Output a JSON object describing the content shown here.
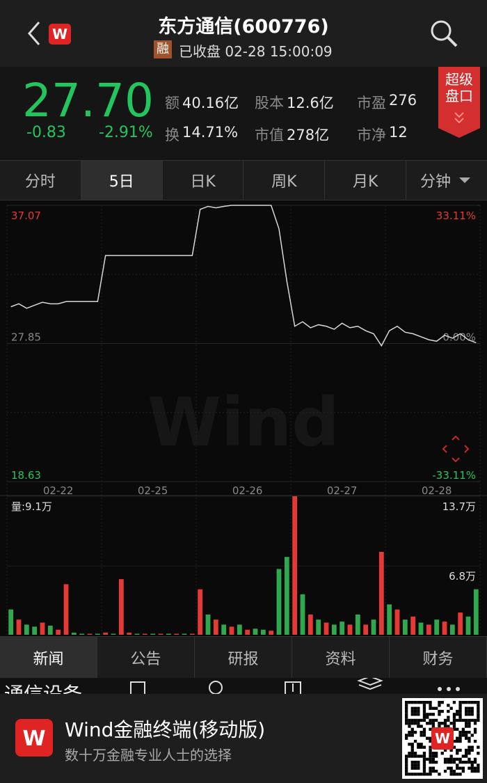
{
  "header": {
    "title": "东方通信(600776)",
    "badge": "融",
    "status": "已收盘 02-28 15:00:09"
  },
  "super_panel": [
    "超级",
    "盘口"
  ],
  "quote": {
    "price": "27.70",
    "change": "-0.83",
    "change_pct": "-2.91%",
    "stats": [
      {
        "label": "额",
        "value": "40.16亿"
      },
      {
        "label": "股本",
        "value": "12.6亿"
      },
      {
        "label": "市盈",
        "value": "276"
      },
      {
        "label": "换",
        "value": "14.71%"
      },
      {
        "label": "市值",
        "value": "278亿"
      },
      {
        "label": "市净",
        "value": "12"
      }
    ]
  },
  "chart_tabs": [
    "分时",
    "5日",
    "日K",
    "周K",
    "月K",
    "分钟"
  ],
  "chart_data": [
    {
      "type": "line",
      "color": "#d8d8d8",
      "categories": [
        null,
        null,
        null,
        null,
        null,
        null,
        "02-22",
        null,
        null,
        null,
        null,
        null,
        null,
        null,
        null,
        null,
        null,
        null,
        "02-25",
        null,
        null,
        null,
        null,
        null,
        null,
        null,
        null,
        null,
        null,
        null,
        "02-26",
        null,
        null,
        null,
        null,
        null,
        null,
        null,
        null,
        null,
        null,
        null,
        "02-27",
        null,
        null,
        null,
        null,
        null,
        null,
        null,
        null,
        null,
        null,
        null,
        "02-28",
        null,
        null,
        null,
        null,
        null
      ],
      "values": [
        30.3,
        30.5,
        30.2,
        30.4,
        30.6,
        30.5,
        30.5,
        30.65,
        30.65,
        30.65,
        30.65,
        30.65,
        33.72,
        33.72,
        33.72,
        33.72,
        33.72,
        33.72,
        33.72,
        33.72,
        33.72,
        33.72,
        33.72,
        33.72,
        36.8,
        37.0,
        36.9,
        37.0,
        37.07,
        37.07,
        37.07,
        37.07,
        37.07,
        37.07,
        35.5,
        32.0,
        29.0,
        29.3,
        28.9,
        29.1,
        29.0,
        28.8,
        29.2,
        28.9,
        29.0,
        28.7,
        28.5,
        27.7,
        28.7,
        29.0,
        28.6,
        28.5,
        28.3,
        28.1,
        28.0,
        28.4,
        28.2,
        28.5,
        28.1,
        27.9
      ],
      "ylim": [
        18.63,
        37.07
      ],
      "yticks": [
        37.07,
        27.85,
        18.63
      ],
      "y2lim": [
        -33.11,
        33.11
      ],
      "y2ticks": [
        {
          "value": 33.11,
          "label": "33.11%"
        },
        {
          "value": 0,
          "label": "0.00%"
        },
        {
          "value": -33.11,
          "label": "-33.11%"
        }
      ],
      "grid": true
    },
    {
      "type": "bar",
      "title": "量:9.1万",
      "values": [
        2.5,
        1.5,
        1,
        0.8,
        1.2,
        0.9,
        0.5,
        5,
        0.2,
        0.1,
        0.1,
        0.1,
        0.2,
        0.1,
        5.5,
        0.2,
        0.1,
        0.1,
        0.1,
        0.1,
        0.1,
        0.1,
        0.1,
        0.1,
        4.5,
        2,
        1.5,
        1,
        0.8,
        1,
        0.5,
        0.6,
        0.5,
        0.4,
        6.5,
        7.7,
        13.7,
        4,
        2,
        1.5,
        1.2,
        1,
        1.3,
        1,
        2,
        1,
        1.5,
        8.2,
        3,
        2.5,
        1.5,
        1.8,
        1.2,
        1,
        1.5,
        1.3,
        1,
        2.2,
        1.8,
        4.5
      ],
      "colors": [
        "#2fa84f",
        "#e53935",
        "#2fa84f",
        "#2fa84f",
        "#e53935",
        "#2fa84f",
        "#e53935",
        "#e53935",
        "#2fa84f",
        "#2fa84f",
        "#e53935",
        "#2fa84f",
        "#e53935",
        "#2fa84f",
        "#e53935",
        "#e53935",
        "#2fa84f",
        "#e53935",
        "#2fa84f",
        "#e53935",
        "#2fa84f",
        "#e53935",
        "#2fa84f",
        "#e53935",
        "#e53935",
        "#2fa84f",
        "#e53935",
        "#2fa84f",
        "#e53935",
        "#2fa84f",
        "#e53935",
        "#2fa84f",
        "#2fa84f",
        "#e53935",
        "#2fa84f",
        "#2fa84f",
        "#e53935",
        "#2fa84f",
        "#e53935",
        "#2fa84f",
        "#e53935",
        "#2fa84f",
        "#2fa84f",
        "#e53935",
        "#2fa84f",
        "#e53935",
        "#2fa84f",
        "#e53935",
        "#2fa84f",
        "#e53935",
        "#2fa84f",
        "#e53935",
        "#2fa84f",
        "#e53935",
        "#2fa84f",
        "#e53935",
        "#2fa84f",
        "#e53935",
        "#2fa84f",
        "#2fa84f"
      ],
      "ylim": [
        0,
        13.7
      ],
      "yticks": [
        {
          "value": 13.7,
          "label": "13.7万"
        },
        {
          "value": 6.8,
          "label": "6.8万"
        }
      ]
    }
  ],
  "watermark": "Wind",
  "info_tabs": [
    "新闻",
    "公告",
    "研报",
    "资料",
    "财务"
  ],
  "section_label": "通信设备",
  "footer": {
    "title": "Wind金融终端(移动版)",
    "subtitle": "数十万金融专业人士的选择"
  }
}
